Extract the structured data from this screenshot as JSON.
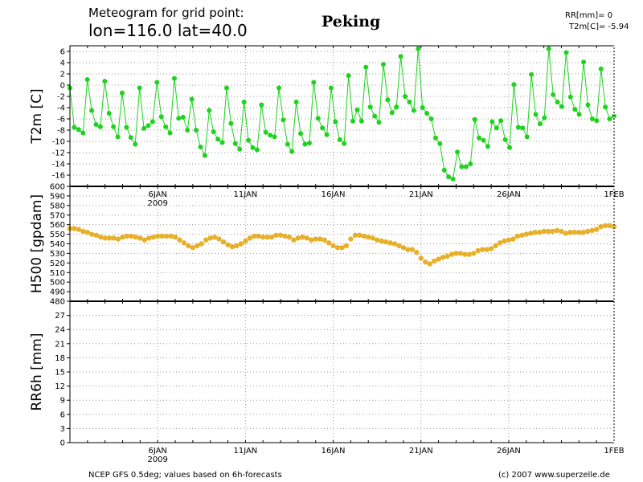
{
  "header": {
    "title_line1": "Meteogram for grid point:",
    "title_line2": "lon=116.0 lat=40.0",
    "location": "Peking",
    "readout_rr": "RR[mm]= 0",
    "readout_t2m": "T2m[C]= -5.94"
  },
  "footer": {
    "left": "NCEP GFS 0.5deg; values based on 6h-forecasts",
    "right": "(c) 2007 www.superzelle.de"
  },
  "colors": {
    "t2m": "#1ed21e",
    "h500": "#e8b02a",
    "axis": "#000000",
    "grid": "#9a9a9a"
  },
  "chart_data": [
    {
      "type": "line",
      "ylabel": "T2m [C]",
      "ylim": [
        -18,
        7
      ],
      "yticks": [
        -16,
        -14,
        -12,
        -10,
        -8,
        -6,
        -4,
        -2,
        0,
        2,
        4,
        6
      ],
      "xticks": [
        "6JAN",
        "11JAN",
        "16JAN",
        "21JAN",
        "26JAN",
        "1FEB"
      ],
      "xtick_year": "2009",
      "x_start": "2009-01-01",
      "x_end": "2009-02-01",
      "grid": true,
      "series": [
        {
          "name": "T2m",
          "values": [
            -0.5,
            -7.5,
            -7.9,
            -8.5,
            1.0,
            -4.5,
            -7.0,
            -7.4,
            0.7,
            -5.0,
            -7.4,
            -9.2,
            -1.4,
            -7.5,
            -9.3,
            -10.5,
            -0.5,
            -7.7,
            -7.2,
            -6.5,
            0.5,
            -5.6,
            -7.4,
            -8.5,
            1.2,
            -5.9,
            -5.7,
            -8.0,
            -2.5,
            -8.0,
            -11.0,
            -12.5,
            -4.5,
            -8.3,
            -9.6,
            -10.2,
            -0.5,
            -6.8,
            -10.4,
            -11.4,
            -3.0,
            -9.8,
            -11.1,
            -11.5,
            -3.5,
            -8.4,
            -8.9,
            -9.2,
            -0.5,
            -6.2,
            -10.5,
            -11.8,
            -3.0,
            -8.6,
            -10.5,
            -10.3,
            0.5,
            -5.9,
            -7.6,
            -8.8,
            -0.5,
            -6.5,
            -9.7,
            -10.4,
            1.7,
            -6.4,
            -4.4,
            -6.4,
            3.2,
            -3.9,
            -5.5,
            -6.6,
            3.7,
            -2.6,
            -4.9,
            -3.9,
            5.1,
            -2.0,
            -3.0,
            -4.5,
            6.5,
            -4.0,
            -5.0,
            -6.0,
            -9.4,
            -10.4,
            -15.1,
            -16.3,
            -16.7,
            -11.9,
            -14.5,
            -14.5,
            -14.0,
            -6.1,
            -9.4,
            -9.8,
            -10.9,
            -6.5,
            -7.6,
            -6.3,
            -9.7,
            -11.1,
            0.1,
            -7.5,
            -7.6,
            -9.2,
            1.9,
            -5.2,
            -6.9,
            -5.8,
            6.5,
            -1.7,
            -3.0,
            -3.8,
            5.8,
            -2.1,
            -4.3,
            -5.2,
            4.1,
            -3.5,
            -6.0,
            -6.3,
            2.9,
            -3.9,
            -6.0,
            -5.5
          ]
        }
      ]
    },
    {
      "type": "line",
      "ylabel": "H500 [gpdam]",
      "ylim": [
        480,
        600
      ],
      "yticks": [
        480,
        490,
        500,
        510,
        520,
        530,
        540,
        550,
        560,
        570,
        580,
        590,
        600
      ],
      "xticks": [
        "6JAN",
        "11JAN",
        "16JAN",
        "21JAN",
        "26JAN",
        "1FEB"
      ],
      "x_start": "2009-01-01",
      "x_end": "2009-02-01",
      "grid": true,
      "series": [
        {
          "name": "H500",
          "values": [
            556,
            556,
            555,
            553,
            552,
            550,
            549,
            547,
            546,
            546,
            546,
            545,
            547,
            548,
            548,
            547,
            546,
            544,
            546,
            547,
            548,
            548,
            548,
            548,
            547,
            544,
            541,
            538,
            536,
            538,
            540,
            544,
            546,
            547,
            545,
            542,
            539,
            537,
            538,
            540,
            543,
            546,
            548,
            548,
            547,
            547,
            547,
            549,
            549,
            548,
            547,
            544,
            546,
            547,
            546,
            544,
            545,
            545,
            544,
            541,
            538,
            536,
            536,
            538,
            545,
            549,
            549,
            548,
            547,
            546,
            544,
            543,
            542,
            541,
            540,
            538,
            536,
            534,
            534,
            531,
            525,
            521,
            519,
            522,
            524,
            526,
            527,
            529,
            530,
            530,
            529,
            529,
            530,
            533,
            534,
            534,
            535,
            538,
            541,
            543,
            544,
            545,
            548,
            549,
            550,
            551,
            552,
            552,
            553,
            553,
            553,
            554,
            553,
            551,
            552,
            552,
            552,
            552,
            553,
            554,
            555,
            558,
            559,
            559,
            558
          ]
        }
      ]
    },
    {
      "type": "bar",
      "ylabel": "RR6h [mm]",
      "ylim": [
        0,
        30
      ],
      "yticks": [
        0,
        3,
        6,
        9,
        12,
        15,
        18,
        21,
        24,
        27
      ],
      "xticks": [
        "6JAN",
        "11JAN",
        "16JAN",
        "21JAN",
        "26JAN",
        "1FEB"
      ],
      "xtick_year": "2009",
      "x_start": "2009-01-01",
      "x_end": "2009-02-01",
      "grid": true,
      "series": [
        {
          "name": "RR6h",
          "values": []
        }
      ]
    }
  ]
}
